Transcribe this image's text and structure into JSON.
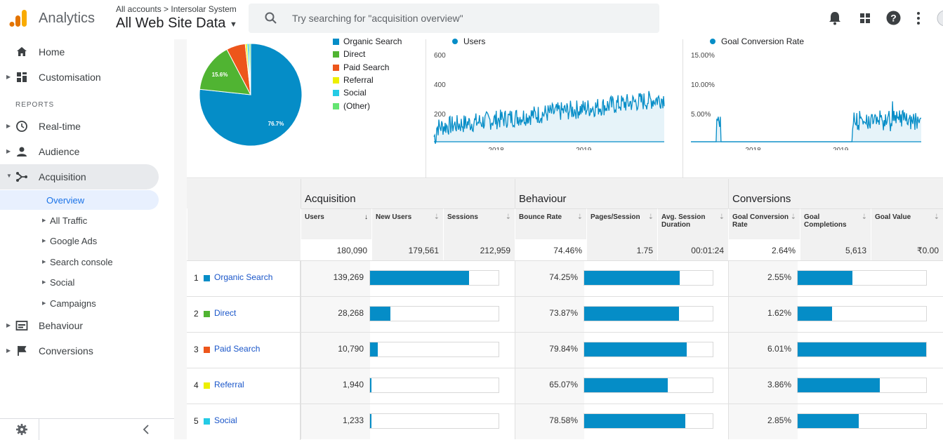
{
  "header": {
    "app_name": "Analytics",
    "account_path": "All accounts > Intersolar System",
    "property_name": "All Web Site Data",
    "search_placeholder": "Try searching for \"acquisition overview\""
  },
  "sidebar": {
    "home": "Home",
    "customisation": "Customisation",
    "reports_header": "REPORTS",
    "realtime": "Real-time",
    "audience": "Audience",
    "acquisition": "Acquisition",
    "sub": [
      "Overview",
      "All Traffic",
      "Google Ads",
      "Search console",
      "Social",
      "Campaigns"
    ],
    "behaviour": "Behaviour",
    "conversions": "Conversions"
  },
  "pie": {
    "legend": [
      {
        "label": "Organic Search",
        "color": "#058dc7"
      },
      {
        "label": "Direct",
        "color": "#50b432"
      },
      {
        "label": "Paid Search",
        "color": "#ed561b"
      },
      {
        "label": "Referral",
        "color": "#edef00"
      },
      {
        "label": "Social",
        "color": "#24cbe5"
      },
      {
        "label": "(Other)",
        "color": "#64e572"
      }
    ],
    "slices": [
      76.7,
      15.6,
      6.0,
      0.6,
      0.6,
      0.5
    ],
    "label_large": "76.7%",
    "label_small": "15.6%"
  },
  "chart_data": [
    {
      "type": "area",
      "title": "Users",
      "y_ticks": [
        "600",
        "400",
        "200"
      ],
      "x_ticks": [
        "2018",
        "2019"
      ],
      "ylim": [
        0,
        600
      ]
    },
    {
      "type": "area",
      "title": "Goal Conversion Rate",
      "y_ticks": [
        "15.00%",
        "10.00%",
        "5.00%"
      ],
      "x_ticks": [
        "2018",
        "2019"
      ],
      "ylim": [
        0,
        15
      ]
    }
  ],
  "table": {
    "groups": [
      "Acquisition",
      "Behaviour",
      "Conversions"
    ],
    "columns": [
      "Users",
      "New Users",
      "Sessions",
      "Bounce Rate",
      "Pages/Session",
      "Avg. Session Duration",
      "Goal Conversion Rate",
      "Goal Completions",
      "Goal Value"
    ],
    "totals": [
      "180,090",
      "179,561",
      "212,959",
      "74.46%",
      "1.75",
      "00:01:24",
      "2.64%",
      "5,613",
      "₹0.00"
    ],
    "rows": [
      {
        "num": "1",
        "name": "Organic Search",
        "color": "#058dc7",
        "users": "139,269",
        "users_frac": 0.773,
        "bounce": "74.25%",
        "bounce_frac": 0.743,
        "conv": "2.55%",
        "conv_frac": 0.424
      },
      {
        "num": "2",
        "name": "Direct",
        "color": "#50b432",
        "users": "28,268",
        "users_frac": 0.157,
        "bounce": "73.87%",
        "bounce_frac": 0.739,
        "conv": "1.62%",
        "conv_frac": 0.27
      },
      {
        "num": "3",
        "name": "Paid Search",
        "color": "#ed561b",
        "users": "10,790",
        "users_frac": 0.06,
        "bounce": "79.84%",
        "bounce_frac": 0.798,
        "conv": "6.01%",
        "conv_frac": 1.0
      },
      {
        "num": "4",
        "name": "Referral",
        "color": "#edef00",
        "users": "1,940",
        "users_frac": 0.011,
        "bounce": "65.07%",
        "bounce_frac": 0.651,
        "conv": "3.86%",
        "conv_frac": 0.642
      },
      {
        "num": "5",
        "name": "Social",
        "color": "#24cbe5",
        "users": "1,233",
        "users_frac": 0.007,
        "bounce": "78.58%",
        "bounce_frac": 0.786,
        "conv": "2.85%",
        "conv_frac": 0.474
      }
    ]
  }
}
